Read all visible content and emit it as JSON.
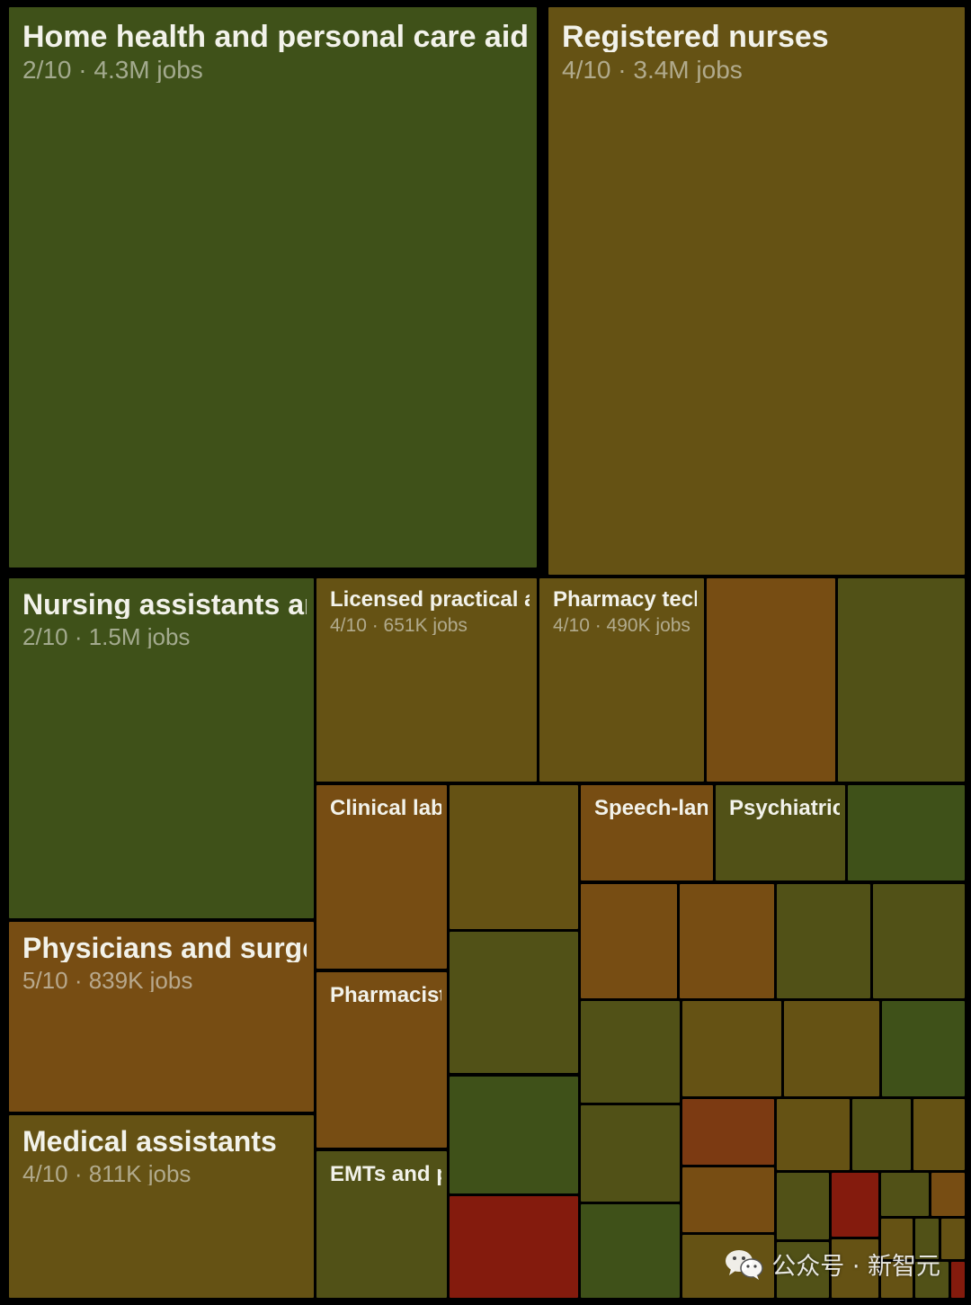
{
  "colors": {
    "green": "#3f5119",
    "olive_green": "#515117",
    "olive": "#655214",
    "amber": "#774d13",
    "rust": "#7c3a12",
    "red": "#841b0d"
  },
  "watermark": {
    "icon": "wechat-icon",
    "text": "公众号 · 新智元"
  },
  "chart_data": {
    "type": "treemap",
    "title": "",
    "tiles": [
      {
        "id": "home-health",
        "name": "Home health and personal care aides",
        "label": "2/10 · 4.3M jobs",
        "score": 2,
        "jobs_millions": 4.3,
        "color": "green",
        "size": "xl"
      },
      {
        "id": "registered-nurses",
        "name": "Registered nurses",
        "label": "4/10 · 3.4M jobs",
        "score": 4,
        "jobs_millions": 3.4,
        "color": "olive",
        "size": "xl"
      },
      {
        "id": "nursing-assistants",
        "name": "Nursing assistants and orderlies",
        "label": "2/10 · 1.5M jobs",
        "score": 2,
        "jobs_millions": 1.5,
        "color": "green",
        "size": "l"
      },
      {
        "id": "physicians",
        "name": "Physicians and surgeons",
        "label": "5/10 · 839K jobs",
        "score": 5,
        "jobs_millions": 0.839,
        "color": "amber",
        "size": "l"
      },
      {
        "id": "medical-assistants",
        "name": "Medical assistants",
        "label": "4/10 · 811K jobs",
        "score": 4,
        "jobs_millions": 0.811,
        "color": "olive",
        "size": "l"
      },
      {
        "id": "licensed-practical",
        "name": "Licensed practical and licensed vocational nurses",
        "label": "4/10 · 651K jobs",
        "score": 4,
        "jobs_millions": 0.651,
        "color": "olive",
        "size": "m"
      },
      {
        "id": "pharmacy-tech",
        "name": "Pharmacy technicians",
        "label": "4/10 · 490K jobs",
        "score": 4,
        "jobs_millions": 0.49,
        "color": "olive",
        "size": "m"
      },
      {
        "id": "t-r1c3",
        "name": "",
        "label": "",
        "color": "amber",
        "size": "none"
      },
      {
        "id": "t-r1c4",
        "name": "",
        "label": "",
        "color": "olive_green",
        "size": "none"
      },
      {
        "id": "clinical-lab",
        "name": "Clinical laboratory technologists",
        "label": "",
        "color": "amber",
        "size": "s"
      },
      {
        "id": "pharmacists",
        "name": "Pharmacists",
        "label": "",
        "color": "amber",
        "size": "s"
      },
      {
        "id": "emts",
        "name": "EMTs and paramedics",
        "label": "",
        "color": "olive_green",
        "size": "s"
      },
      {
        "id": "c2-a",
        "name": "",
        "label": "",
        "color": "olive",
        "size": "none"
      },
      {
        "id": "c2-b",
        "name": "",
        "label": "",
        "color": "olive_green",
        "size": "none"
      },
      {
        "id": "c2-c",
        "name": "",
        "label": "",
        "color": "green",
        "size": "none"
      },
      {
        "id": "c2-d",
        "name": "",
        "label": "",
        "color": "red",
        "size": "none"
      },
      {
        "id": "speech",
        "name": "Speech-language pathologists",
        "label": "",
        "color": "amber",
        "size": "s"
      },
      {
        "id": "psychiatric",
        "name": "Psychiatric technicians",
        "label": "",
        "color": "olive_green",
        "size": "s"
      },
      {
        "id": "r2-c",
        "name": "",
        "label": "",
        "color": "green",
        "size": "none"
      },
      {
        "id": "r3-a",
        "name": "",
        "label": "",
        "color": "amber",
        "size": "none"
      },
      {
        "id": "r3-b",
        "name": "",
        "label": "",
        "color": "amber",
        "size": "none"
      },
      {
        "id": "r3-c",
        "name": "",
        "label": "",
        "color": "olive_green",
        "size": "none"
      },
      {
        "id": "r3-d",
        "name": "",
        "label": "",
        "color": "olive_green",
        "size": "none"
      },
      {
        "id": "r4-a",
        "name": "",
        "label": "",
        "color": "olive_green",
        "size": "none"
      },
      {
        "id": "r4-b",
        "name": "",
        "label": "",
        "color": "olive",
        "size": "none"
      },
      {
        "id": "r4-c",
        "name": "",
        "label": "",
        "color": "olive",
        "size": "none"
      },
      {
        "id": "r4-d",
        "name": "",
        "label": "",
        "color": "green",
        "size": "none"
      },
      {
        "id": "r5-a",
        "name": "",
        "label": "",
        "color": "olive_green",
        "size": "none"
      },
      {
        "id": "r5-b",
        "name": "",
        "label": "",
        "color": "green",
        "size": "none"
      },
      {
        "id": "r5-c",
        "name": "",
        "label": "",
        "color": "rust",
        "size": "none"
      },
      {
        "id": "r5-d",
        "name": "",
        "label": "",
        "color": "amber",
        "size": "none"
      },
      {
        "id": "r5-e",
        "name": "",
        "label": "",
        "color": "olive",
        "size": "none"
      },
      {
        "id": "r5-f",
        "name": "",
        "label": "",
        "color": "olive",
        "size": "none"
      },
      {
        "id": "r5-g",
        "name": "",
        "label": "",
        "color": "olive_green",
        "size": "none"
      },
      {
        "id": "r5-h",
        "name": "",
        "label": "",
        "color": "olive",
        "size": "none"
      },
      {
        "id": "r6-a",
        "name": "",
        "label": "",
        "color": "olive_green",
        "size": "none"
      },
      {
        "id": "r6-b",
        "name": "",
        "label": "",
        "color": "red",
        "size": "none"
      },
      {
        "id": "r6-c",
        "name": "",
        "label": "",
        "color": "olive_green",
        "size": "none"
      },
      {
        "id": "r6-d",
        "name": "",
        "label": "",
        "color": "amber",
        "size": "none"
      },
      {
        "id": "r6-e",
        "name": "",
        "label": "",
        "color": "olive_green",
        "size": "none"
      },
      {
        "id": "r6-f",
        "name": "",
        "label": "",
        "color": "olive",
        "size": "none"
      },
      {
        "id": "r6-g",
        "name": "",
        "label": "",
        "color": "olive",
        "size": "none"
      },
      {
        "id": "r6-h",
        "name": "",
        "label": "",
        "color": "olive_green",
        "size": "none"
      },
      {
        "id": "r6-i",
        "name": "",
        "label": "",
        "color": "olive",
        "size": "none"
      },
      {
        "id": "r6-j",
        "name": "",
        "label": "",
        "color": "olive",
        "size": "none"
      },
      {
        "id": "r6-k",
        "name": "",
        "label": "",
        "color": "olive_green",
        "size": "none"
      },
      {
        "id": "r6-l",
        "name": "",
        "label": "",
        "color": "red",
        "size": "none"
      }
    ]
  }
}
